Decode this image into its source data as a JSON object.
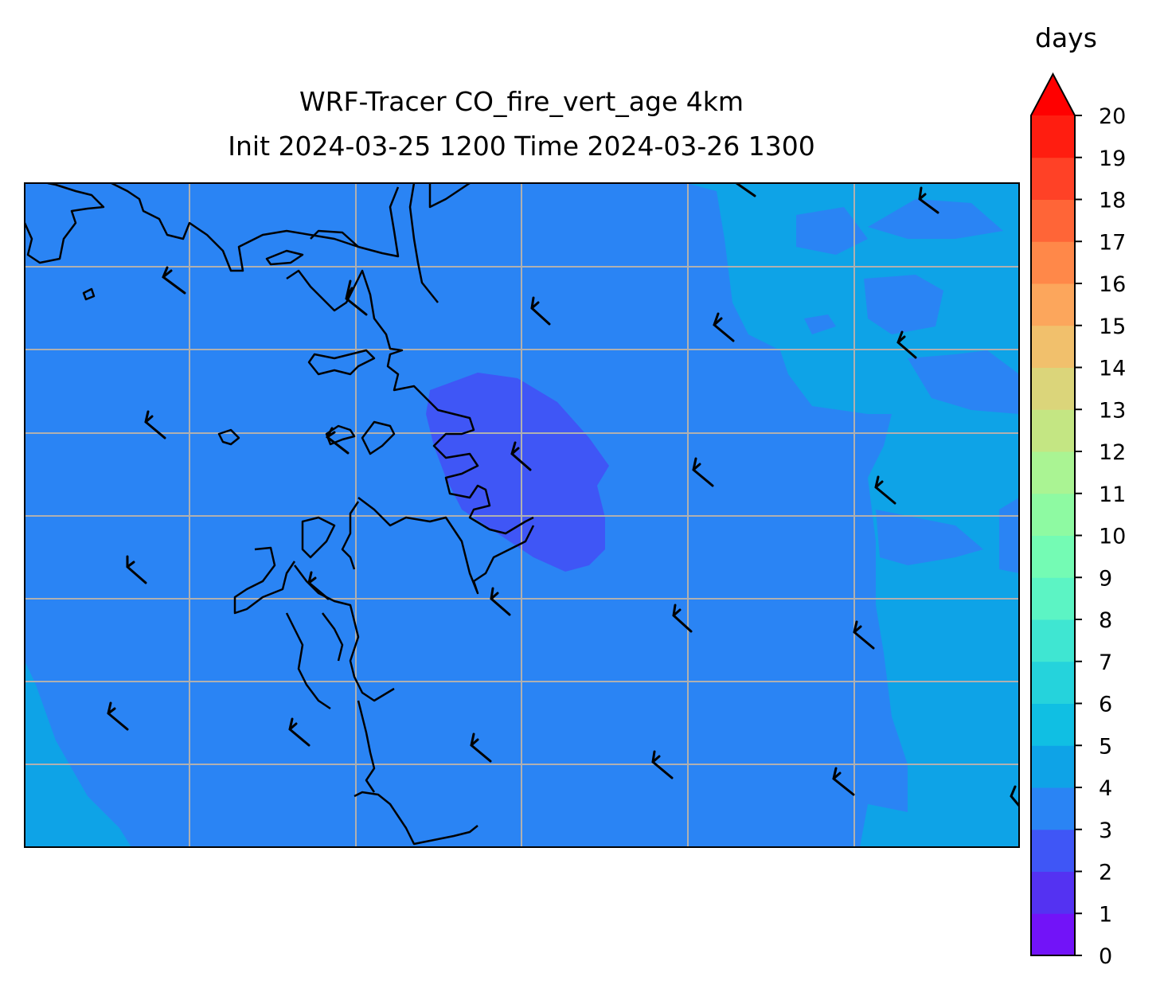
{
  "title": {
    "line1": "WRF-Tracer CO_fire_vert_age 4km",
    "line2": "Init 2024-03-25 1200 Time 2024-03-26 1300"
  },
  "colorbar": {
    "label": "days",
    "ticks": [
      0,
      1,
      2,
      3,
      4,
      5,
      6,
      7,
      8,
      9,
      10,
      11,
      12,
      13,
      14,
      15,
      16,
      17,
      18,
      19,
      20
    ],
    "levels": [
      {
        "from": 0,
        "to": 1,
        "color": "#7213f8"
      },
      {
        "from": 1,
        "to": 2,
        "color": "#5432f2"
      },
      {
        "from": 2,
        "to": 3,
        "color": "#3f56f6"
      },
      {
        "from": 3,
        "to": 4,
        "color": "#2a84f4"
      },
      {
        "from": 4,
        "to": 5,
        "color": "#0ea3e7"
      },
      {
        "from": 5,
        "to": 6,
        "color": "#10bfe3"
      },
      {
        "from": 6,
        "to": 7,
        "color": "#25d3dc"
      },
      {
        "from": 7,
        "to": 8,
        "color": "#3fe6d2"
      },
      {
        "from": 8,
        "to": 9,
        "color": "#5cf4c4"
      },
      {
        "from": 9,
        "to": 10,
        "color": "#74fbb4"
      },
      {
        "from": 10,
        "to": 11,
        "color": "#8efaa2"
      },
      {
        "from": 11,
        "to": 12,
        "color": "#aaf493"
      },
      {
        "from": 12,
        "to": 13,
        "color": "#c4e683"
      },
      {
        "from": 13,
        "to": 14,
        "color": "#dbd57a"
      },
      {
        "from": 14,
        "to": 15,
        "color": "#f1c06c"
      },
      {
        "from": 15,
        "to": 16,
        "color": "#fca65c"
      },
      {
        "from": 16,
        "to": 17,
        "color": "#ff8849"
      },
      {
        "from": 17,
        "to": 18,
        "color": "#ff6537"
      },
      {
        "from": 18,
        "to": 19,
        "color": "#ff4126"
      },
      {
        "from": 19,
        "to": 20,
        "color": "#ff1d10"
      }
    ],
    "extend_max_color": "#ff0000"
  },
  "map": {
    "field_colors": {
      "base": "#2a84f4",
      "younger_age": "#3f56f6",
      "older_age": "#0ea3e7"
    },
    "gridlines": "on",
    "coastline_color": "#000000",
    "wind_barbs": "on"
  }
}
